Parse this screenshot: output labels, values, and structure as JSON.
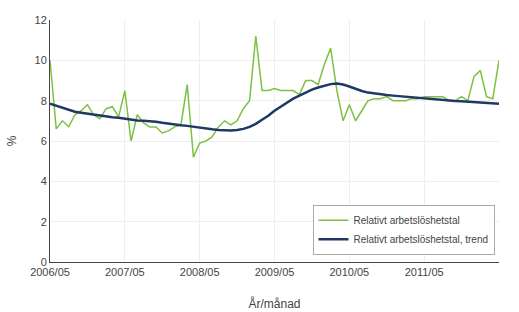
{
  "chart_data": {
    "type": "line",
    "xlabel": "År/månad",
    "ylabel": "%",
    "categories": [
      "2006/05",
      null,
      null,
      null,
      null,
      null,
      null,
      null,
      null,
      null,
      null,
      null,
      "2007/05",
      null,
      null,
      null,
      null,
      null,
      null,
      null,
      null,
      null,
      null,
      null,
      "2008/05",
      null,
      null,
      null,
      null,
      null,
      null,
      null,
      null,
      null,
      null,
      null,
      "2009/05",
      null,
      null,
      null,
      null,
      null,
      null,
      null,
      null,
      null,
      null,
      null,
      "2010/05",
      null,
      null,
      null,
      null,
      null,
      null,
      null,
      null,
      null,
      null,
      null,
      "2011/05",
      null,
      null,
      null,
      null,
      null,
      null,
      null,
      null,
      null,
      null,
      null,
      null
    ],
    "series": [
      {
        "name": "Relativt arbetslöshetstal",
        "color": "#7dc142",
        "values": [
          10.0,
          6.6,
          7.0,
          6.7,
          7.3,
          7.5,
          7.8,
          7.3,
          7.1,
          7.6,
          7.7,
          7.2,
          8.5,
          6.0,
          7.3,
          6.9,
          6.7,
          6.7,
          6.4,
          6.5,
          6.7,
          6.8,
          8.8,
          5.2,
          5.9,
          6.0,
          6.2,
          6.7,
          7.0,
          6.8,
          7.0,
          7.6,
          8.0,
          11.2,
          8.5,
          8.5,
          8.6,
          8.5,
          8.5,
          8.5,
          8.3,
          9.0,
          9.0,
          8.8,
          9.8,
          10.6,
          8.5,
          7.0,
          7.8,
          7.0,
          7.5,
          8.0,
          8.1,
          8.1,
          8.2,
          8.0,
          8.0,
          8.0,
          8.1,
          8.1,
          8.2,
          8.2,
          8.2,
          8.2,
          8.0,
          8.0,
          8.2,
          8.0,
          9.2,
          9.5,
          8.2,
          8.1,
          10.0
        ]
      },
      {
        "name": "Relativt arbetslöshetstal, trend",
        "color": "#1f3864",
        "values": [
          7.85,
          7.75,
          7.65,
          7.55,
          7.45,
          7.4,
          7.35,
          7.3,
          7.25,
          7.2,
          7.18,
          7.15,
          7.1,
          7.05,
          7.02,
          7.0,
          6.98,
          6.95,
          6.9,
          6.85,
          6.8,
          6.78,
          6.75,
          6.7,
          6.65,
          6.6,
          6.58,
          6.55,
          6.53,
          6.52,
          6.55,
          6.6,
          6.7,
          6.85,
          7.05,
          7.25,
          7.5,
          7.7,
          7.9,
          8.1,
          8.25,
          8.4,
          8.55,
          8.65,
          8.75,
          8.82,
          8.85,
          8.8,
          8.7,
          8.58,
          8.48,
          8.4,
          8.35,
          8.3,
          8.28,
          8.25,
          8.22,
          8.2,
          8.18,
          8.15,
          8.1,
          8.08,
          8.05,
          8.03,
          8.0,
          7.98,
          7.97,
          7.95,
          7.93,
          7.92,
          7.9,
          7.88,
          7.85
        ]
      }
    ],
    "ylim": [
      0,
      12
    ],
    "yticks": [
      0,
      2,
      4,
      6,
      8,
      10,
      12
    ],
    "grid": true,
    "legend": "lower right"
  }
}
